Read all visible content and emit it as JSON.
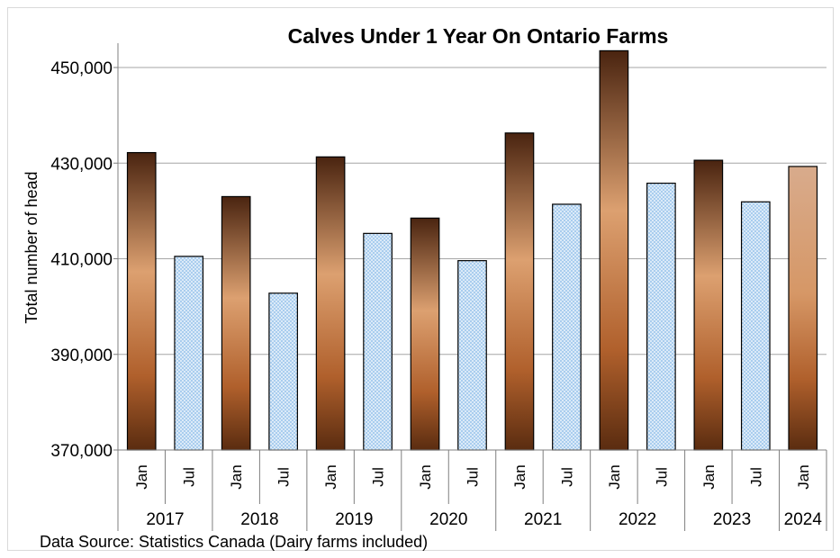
{
  "chart_data": {
    "type": "bar",
    "title": "Calves Under 1 Year On Ontario Farms",
    "ylabel": "Total number of head",
    "xlabel": "",
    "source": "Data Source: Statistics Canada (Dairy farms included)",
    "ylim": [
      370000,
      450000
    ],
    "yticks": [
      "370,000",
      "390,000",
      "410,000",
      "430,000",
      "450,000"
    ],
    "ytick_values": [
      370000,
      390000,
      410000,
      430000,
      450000
    ],
    "grid": true,
    "categories": [
      "Jan",
      "Jul",
      "Jan",
      "Jul",
      "Jan",
      "Jul",
      "Jan",
      "Jul",
      "Jan",
      "Jul",
      "Jan",
      "Jul",
      "Jan",
      "Jul",
      "Jan"
    ],
    "years": [
      {
        "label": "2017",
        "span": 2
      },
      {
        "label": "2018",
        "span": 2
      },
      {
        "label": "2019",
        "span": 2
      },
      {
        "label": "2020",
        "span": 2
      },
      {
        "label": "2021",
        "span": 2
      },
      {
        "label": "2022",
        "span": 2
      },
      {
        "label": "2023",
        "span": 2
      },
      {
        "label": "2024",
        "span": 1
      }
    ],
    "values": [
      432200,
      410500,
      423000,
      402800,
      431300,
      415300,
      418500,
      409600,
      436300,
      421400,
      453500,
      425800,
      430600,
      421900,
      429300
    ],
    "colors": {
      "jan_dark": "#5a2e12",
      "jan_light": "#dda573",
      "jan_mid": "#b66a3a",
      "jul_fill": "#bcd9f2",
      "jul_dot": "#ffffff",
      "latest_light": "#d8ab8c",
      "grid": "#a6a6a6"
    }
  }
}
